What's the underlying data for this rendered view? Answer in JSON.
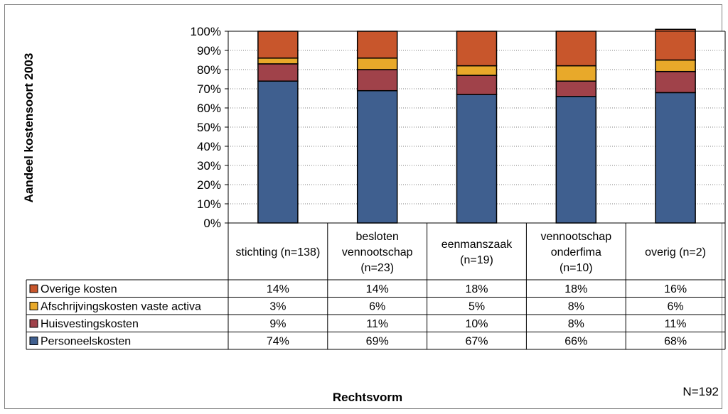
{
  "chart_data": {
    "type": "bar",
    "stacked": true,
    "percent": true,
    "ylabel": "Aandeel kostensoort 2003",
    "xlabel": "Rechtsvorm",
    "note": "N=192",
    "ylim": [
      0,
      100
    ],
    "yticks": [
      "0%",
      "10%",
      "20%",
      "30%",
      "40%",
      "50%",
      "60%",
      "70%",
      "80%",
      "90%",
      "100%"
    ],
    "grid": true,
    "categories": [
      [
        "stichting (n=138)"
      ],
      [
        "besloten",
        "vennootschap",
        "(n=23)"
      ],
      [
        "eenmanszaak",
        "(n=19)"
      ],
      [
        "vennootschap",
        "onderfima",
        "(n=10)"
      ],
      [
        "overig (n=2)"
      ]
    ],
    "series": [
      {
        "name": "Personeelskosten",
        "color": "#3f5f8f",
        "values": [
          74,
          69,
          67,
          66,
          68
        ],
        "labels": [
          "74%",
          "69%",
          "67%",
          "66%",
          "68%"
        ]
      },
      {
        "name": "Huisvestingskosten",
        "color": "#a0424a",
        "values": [
          9,
          11,
          10,
          8,
          11
        ],
        "labels": [
          "9%",
          "11%",
          "10%",
          "8%",
          "11%"
        ]
      },
      {
        "name": "Afschrijvingskosten vaste activa",
        "color": "#e8a92a",
        "values": [
          3,
          6,
          5,
          8,
          6
        ],
        "labels": [
          "3%",
          "6%",
          "5%",
          "8%",
          "6%"
        ]
      },
      {
        "name": "Overige kosten",
        "color": "#c8562c",
        "values": [
          14,
          14,
          18,
          18,
          16
        ],
        "labels": [
          "14%",
          "14%",
          "18%",
          "18%",
          "16%"
        ]
      }
    ],
    "table_order": [
      "Overige kosten",
      "Afschrijvingskosten vaste activa",
      "Huisvestingskosten",
      "Personeelskosten"
    ]
  }
}
